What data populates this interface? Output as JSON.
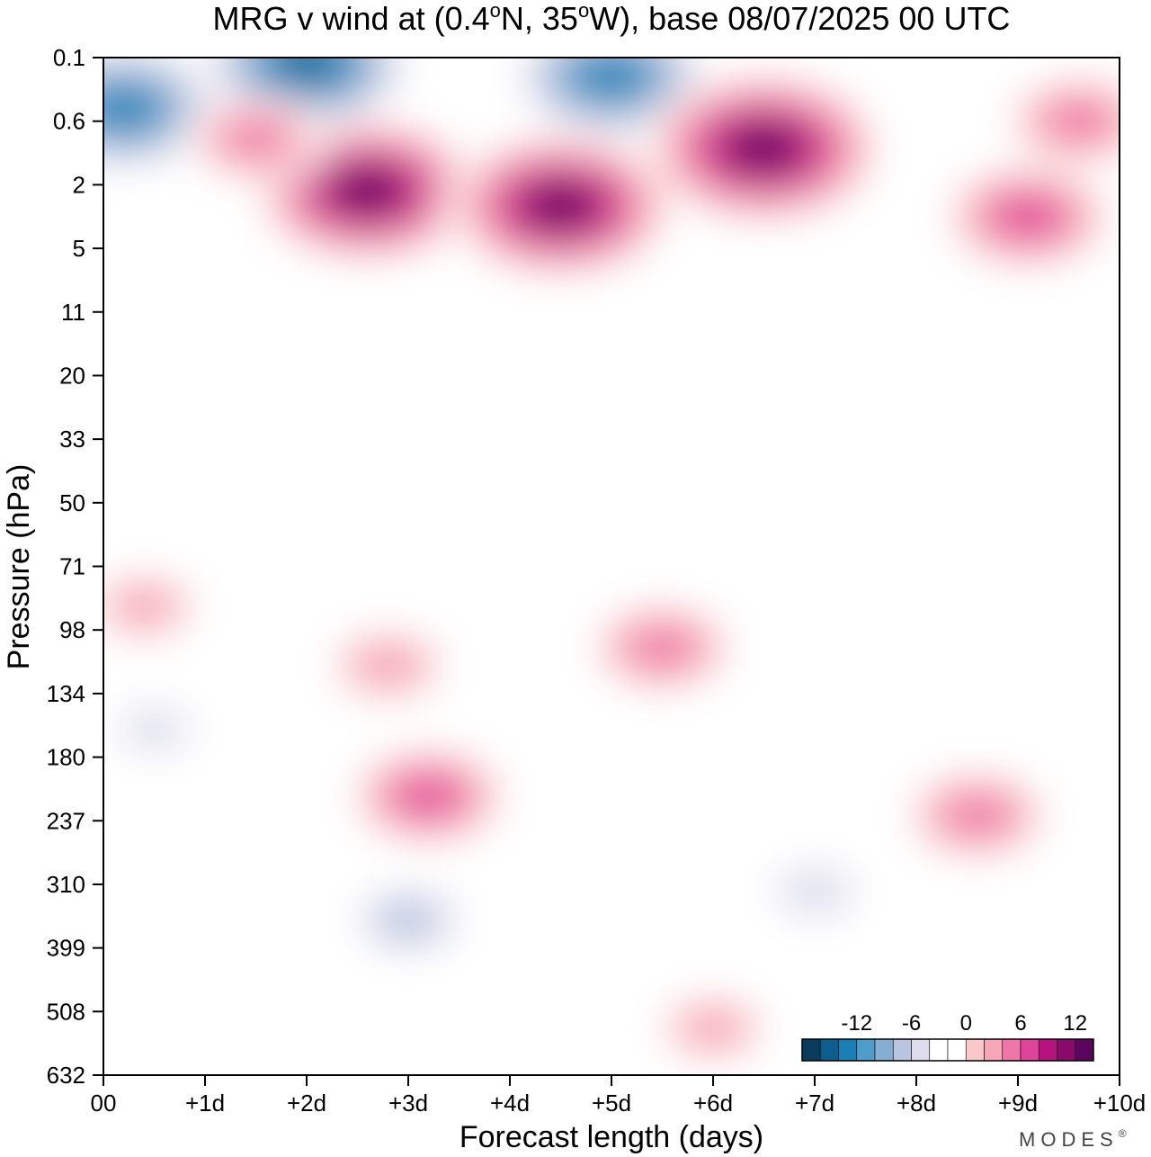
{
  "chart_data": {
    "type": "heatmap",
    "title_parts": {
      "pre": "MRG v wind at (0.4",
      "deg1": "o",
      "mid": "N, 35",
      "deg2": "o",
      "post": "W),  base 08/07/2025  00 UTC"
    },
    "xlabel": "Forecast length (days)",
    "ylabel": "Pressure (hPa)",
    "x_ticks": [
      "00",
      "+1d",
      "+2d",
      "+3d",
      "+4d",
      "+5d",
      "+6d",
      "+7d",
      "+8d",
      "+9d",
      "+10d"
    ],
    "x_range_days": [
      0,
      10
    ],
    "y_ticks": [
      "0.1",
      "0.6",
      "2",
      "5",
      "11",
      "20",
      "33",
      "50",
      "71",
      "98",
      "134",
      "180",
      "237",
      "310",
      "399",
      "508",
      "632"
    ],
    "y_scale": "pressure levels (top to bottom)",
    "colorbar": {
      "tick_labels": [
        "-12",
        "-6",
        "0",
        "6",
        "12"
      ],
      "bins": [
        "#0a3a5c",
        "#0d5e8e",
        "#1a7fb5",
        "#4d9cc9",
        "#86aed3",
        "#b8c4e0",
        "#dcdcec",
        "#ffffff",
        "#ffffff",
        "#f9c9c9",
        "#f6a6b6",
        "#ef77a8",
        "#e0449a",
        "#b6137e",
        "#8a0a6c",
        "#5b0460"
      ],
      "placement": "bottom-right"
    },
    "features": [
      {
        "x": 0.2,
        "y": 0.5,
        "v": -12
      },
      {
        "x": 2.0,
        "y": 0.15,
        "v": -13
      },
      {
        "x": 2.6,
        "y": 2.3,
        "v": 15
      },
      {
        "x": 4.5,
        "y": 3.0,
        "v": 15
      },
      {
        "x": 5.0,
        "y": 0.25,
        "v": -12
      },
      {
        "x": 6.5,
        "y": 1.2,
        "v": 16
      },
      {
        "x": 9.1,
        "y": 3.5,
        "v": 10
      },
      {
        "x": 9.6,
        "y": 0.6,
        "v": 8
      },
      {
        "x": 1.5,
        "y": 1.0,
        "v": 7
      },
      {
        "x": 3.2,
        "y": 215,
        "v": 9
      },
      {
        "x": 5.5,
        "y": 108,
        "v": 8
      },
      {
        "x": 8.6,
        "y": 232,
        "v": 8
      },
      {
        "x": 3.0,
        "y": 360,
        "v": -5
      },
      {
        "x": 7.0,
        "y": 320,
        "v": -4
      },
      {
        "x": 6.0,
        "y": 540,
        "v": 5
      },
      {
        "x": 0.5,
        "y": 160,
        "v": -3
      },
      {
        "x": 0.4,
        "y": 88,
        "v": 5
      },
      {
        "x": 2.8,
        "y": 118,
        "v": 6
      }
    ]
  },
  "brand": "MODES",
  "brand_mark": "®"
}
